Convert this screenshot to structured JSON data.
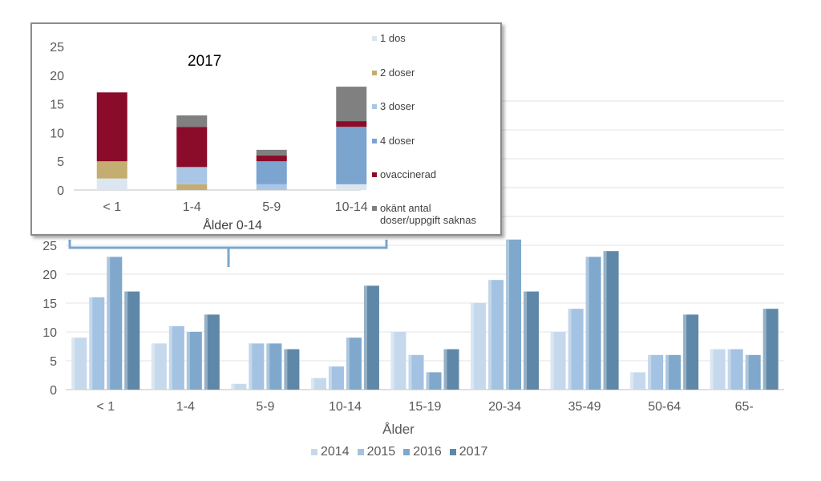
{
  "chart_data": [
    {
      "type": "bar",
      "categories": [
        "< 1",
        "1-4",
        "5-9",
        "10-14",
        "15-19",
        "20-34",
        "35-49",
        "50-64",
        "65-"
      ],
      "series": [
        {
          "name": "2014",
          "values": [
            9,
            8,
            1,
            2,
            10,
            15,
            10,
            3,
            7
          ]
        },
        {
          "name": "2015",
          "values": [
            16,
            11,
            8,
            4,
            6,
            19,
            14,
            6,
            7
          ]
        },
        {
          "name": "2016",
          "values": [
            23,
            10,
            8,
            9,
            3,
            26,
            23,
            6,
            6
          ]
        },
        {
          "name": "2017",
          "values": [
            17,
            13,
            7,
            18,
            7,
            17,
            24,
            13,
            14
          ]
        }
      ],
      "colors": [
        "#c6d9ec",
        "#a4c2e2",
        "#7fa8cc",
        "#5f88a8"
      ],
      "xlabel": "Ålder",
      "ylabel": "",
      "ylim": [
        0,
        25
      ],
      "yticks": [
        0,
        5,
        10,
        15,
        20,
        25
      ],
      "grid": true,
      "legend_position": "bottom"
    },
    {
      "type": "bar",
      "stacked": true,
      "title": "2017",
      "categories": [
        "< 1",
        "1-4",
        "5-9",
        "10-14"
      ],
      "series": [
        {
          "name": "1 dos",
          "values": [
            2,
            0,
            0,
            1
          ]
        },
        {
          "name": "2 doser",
          "values": [
            3,
            1,
            0,
            0
          ]
        },
        {
          "name": "3 doser",
          "values": [
            0,
            3,
            1,
            0
          ]
        },
        {
          "name": "4 doser",
          "values": [
            0,
            0,
            4,
            10
          ]
        },
        {
          "name": "ovaccinerad",
          "values": [
            12,
            7,
            1,
            1
          ]
        },
        {
          "name": "okänt antal doser/uppgift saknas",
          "values": [
            0,
            2,
            1,
            6
          ]
        }
      ],
      "colors": [
        "#dce6f1",
        "#c4ad70",
        "#a9c6e6",
        "#7ba4cf",
        "#8b0b2a",
        "#808080"
      ],
      "xlabel": "Ålder 0-14",
      "ylabel": "",
      "ylim": [
        0,
        25
      ],
      "yticks": [
        0,
        5,
        10,
        15,
        20,
        25
      ],
      "grid": false,
      "legend_position": "right"
    }
  ],
  "inset_legend_lines": [
    [
      "1 dos"
    ],
    [
      "2 doser"
    ],
    [
      "3 doser"
    ],
    [
      "4 doser"
    ],
    [
      "ovaccinerad"
    ],
    [
      "okänt antal",
      "doser/uppgift saknas"
    ]
  ]
}
